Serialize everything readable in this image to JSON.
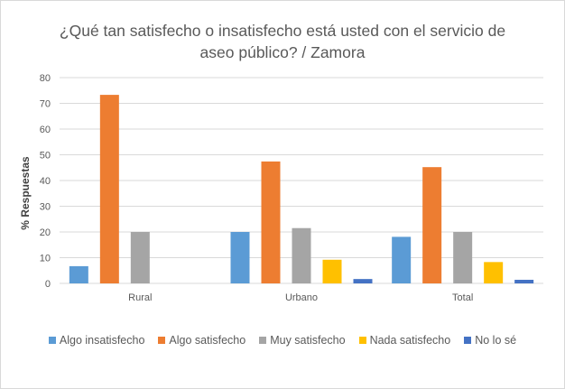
{
  "chart_data": {
    "type": "bar",
    "title": "¿Qué tan satisfecho o insatisfecho está usted con el servicio de aseo público? / Zamora",
    "title_lines": [
      "¿Qué tan satisfecho o insatisfecho está usted con el servicio de",
      "aseo público? / Zamora"
    ],
    "xlabel": "",
    "ylabel": "% Respuestas",
    "ylim": [
      0,
      80
    ],
    "yticks": [
      0,
      10,
      20,
      30,
      40,
      50,
      60,
      70,
      80
    ],
    "grid": true,
    "legend_position": "bottom",
    "categories": [
      "Rural",
      "Urbano",
      "Total"
    ],
    "series": [
      {
        "name": "Algo insatisfecho",
        "color": "#5b9bd5",
        "values": [
          6.7,
          20.0,
          18.1
        ]
      },
      {
        "name": "Algo satisfecho",
        "color": "#ed7d31",
        "values": [
          73.3,
          47.4,
          45.2
        ]
      },
      {
        "name": "Muy satisfecho",
        "color": "#a5a5a5",
        "values": [
          20.0,
          21.5,
          20.0
        ]
      },
      {
        "name": "Nada satisfecho",
        "color": "#ffc000",
        "values": [
          0,
          9.2,
          8.3
        ]
      },
      {
        "name": "No lo sé",
        "color": "#4472c4",
        "values": [
          0,
          1.7,
          1.4
        ]
      }
    ]
  }
}
